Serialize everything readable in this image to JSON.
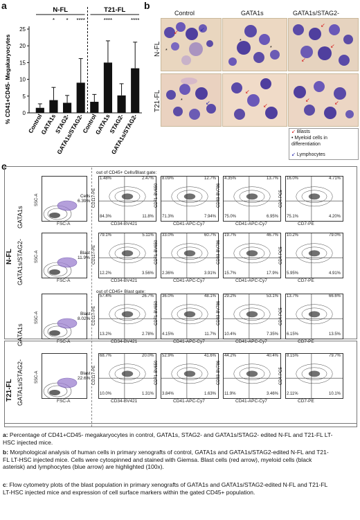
{
  "panel_labels": {
    "a": "a",
    "b": "b",
    "c": "c"
  },
  "chart_data": {
    "type": "bar",
    "ylabel": "% CD41+CD45- Megakaryocytes",
    "ylim": [
      0,
      25
    ],
    "yticks": [
      "0",
      "5",
      "10",
      "15",
      "20",
      "25"
    ],
    "groups": [
      {
        "name": "N-FL"
      },
      {
        "name": "T21-FL"
      }
    ],
    "categories": [
      "Control",
      "GATA1s",
      "STAG2-",
      "GATA1s/STAG2-",
      "Control",
      "GATA1s",
      "STAG2-",
      "GATA1s/STAG2-"
    ],
    "values": [
      1.5,
      3.8,
      3.0,
      9.0,
      3.3,
      15.0,
      5.2,
      13.3
    ],
    "errors": [
      1.2,
      3.8,
      2.2,
      7.2,
      2.2,
      6.5,
      3.5,
      7.8
    ],
    "significance": [
      "",
      "*",
      "*",
      "****",
      "",
      "****",
      "",
      "****"
    ],
    "colors": {
      "bar": "#111111"
    }
  },
  "panel_b": {
    "columns": [
      "Control",
      "GATA1s",
      "GATA1s/STAG2-"
    ],
    "rows": [
      "N-FL",
      "T21-FL"
    ],
    "legend": [
      {
        "icon": "red-arrow-icon",
        "label": "Blasts",
        "color": "#d62020"
      },
      {
        "icon": "asterisk-icon",
        "label": "Myeloid cells in differentiation",
        "color": "#111111"
      },
      {
        "icon": "blue-arrow-icon",
        "label": "Lymphocytes",
        "color": "#2a2ab0"
      }
    ]
  },
  "panel_c": {
    "groups": [
      "N-FL",
      "T21-FL"
    ],
    "gate_note_1": "out of CD45+ Cells/Blast gate:",
    "gate_note_2": "out of CD45+ Blast gate:",
    "rows": [
      {
        "label": "GATA1s",
        "gate_name": "Cells",
        "gate_pct": "6.39%",
        "scatter_y": "SSC-A",
        "scatter_x": "FSC-A",
        "plots": [
          {
            "y": "CD117-PE",
            "x": "CD34-BV421",
            "q": [
              "1.48%",
              "2.47%",
              "84.3%",
              "11.8%"
            ]
          },
          {
            "y": "CD71-BV650",
            "x": "CD41-APC-Cy7",
            "q": [
              "8.09%",
              "12.7%",
              "71.3%",
              "7.94%"
            ]
          },
          {
            "y": "CD33-BV786",
            "x": "CD41-APC-Cy7",
            "q": [
              "4.35%",
              "13.7%",
              "75.0%",
              "6.95%"
            ]
          },
          {
            "y": "CD4-PC5",
            "x": "CD7-PE",
            "q": [
              "16.0%",
              "4.71%",
              "75.1%",
              "4.20%"
            ]
          }
        ]
      },
      {
        "label": "GATA1s/STAG2-",
        "gate_name": "Blast",
        "gate_pct": "11.9%",
        "scatter_y": "SSC-A",
        "scatter_x": "FSC-A",
        "plots": [
          {
            "y": "CD117-PE",
            "x": "CD34-BV421",
            "q": [
              "79.1%",
              "5.11%",
              "12.2%",
              "3.56%"
            ]
          },
          {
            "y": "CD71-BV650",
            "x": "CD41-APC-Cy7",
            "q": [
              "33.0%",
              "60.7%",
              "2.36%",
              "3.91%"
            ]
          },
          {
            "y": "CD33-BV786",
            "x": "CD41-APC-Cy7",
            "q": [
              "19.7%",
              "46.7%",
              "15.7%",
              "17.9%"
            ]
          },
          {
            "y": "CD4-PC5",
            "x": "CD7-PE",
            "q": [
              "10.2%",
              "79.0%",
              "5.95%",
              "4.91%"
            ]
          }
        ]
      },
      {
        "label": "GATA1s",
        "gate_name": "Blast",
        "gate_pct": "8.02%",
        "scatter_y": "SSC-A",
        "scatter_x": "FSC-A",
        "plots": [
          {
            "y": "CD117-PE",
            "x": "CD34-BV421",
            "q": [
              "57.4%",
              "26.7%",
              "13.2%",
              "2.78%"
            ]
          },
          {
            "y": "CD71-BV650",
            "x": "CD41-APC-Cy7",
            "q": [
              "36.0%",
              "48.1%",
              "4.15%",
              "11.7%"
            ]
          },
          {
            "y": "CD33-BV786",
            "x": "CD41-APC-Cy7",
            "q": [
              "29.2%",
              "53.1%",
              "10.4%",
              "7.35%"
            ]
          },
          {
            "y": "CD4-PC5",
            "x": "CD7-PE",
            "q": [
              "13.7%",
              "66.6%",
              "6.15%",
              "13.5%"
            ]
          }
        ]
      },
      {
        "label": "GATA1s/STAG2-",
        "gate_name": "Blast",
        "gate_pct": "22.6%",
        "scatter_y": "SSC-A",
        "scatter_x": "FSC-A",
        "plots": [
          {
            "y": "CD117-PE",
            "x": "CD34-BV421",
            "q": [
              "68.7%",
              "20.0%",
              "10.0%",
              "1.31%"
            ]
          },
          {
            "y": "CD71-BV650",
            "x": "CD41-APC-Cy7",
            "q": [
              "52.9%",
              "41.6%",
              "3.84%",
              "1.63%"
            ]
          },
          {
            "y": "CD33-BV786",
            "x": "CD41-APC-Cy7",
            "q": [
              "44.2%",
              "40.4%",
              "11.9%",
              "3.46%"
            ]
          },
          {
            "y": "CD4-PC5",
            "x": "CD7-PE",
            "q": [
              "8.15%",
              "79.7%",
              "2.11%",
              "10.1%"
            ]
          }
        ]
      }
    ]
  },
  "caption": {
    "a_label": "a:",
    "a_text": " Percentage of CD41+CD45- megakaryocytes in control, GATA1s, STAG2- and GATA1s/STAG2- edited N-FL and T21-FL LT-HSC injected mice.",
    "b_label": "b:",
    "b_text": " Morphological analysis of human cells in primary xenografts of control, GATA1s and GATA1s/STAG2-edited N-FL and T21-FL LT-HSC injected mice. Cells were cytospinned and stained with Giemsa. Blast cells (red arrow), myeloid cells (black asterisk) and lymphocytes (blue arrow) are highlighted (100x).",
    "c_label": "c",
    "c_text": ": Flow cytometry plots of the blast population in primary xenografts of GATA1s and GATA1s/STAG2-edited N-FL and T21-FL LT-HSC injected mice and expression of cell surface markers within the gated CD45+ population."
  }
}
